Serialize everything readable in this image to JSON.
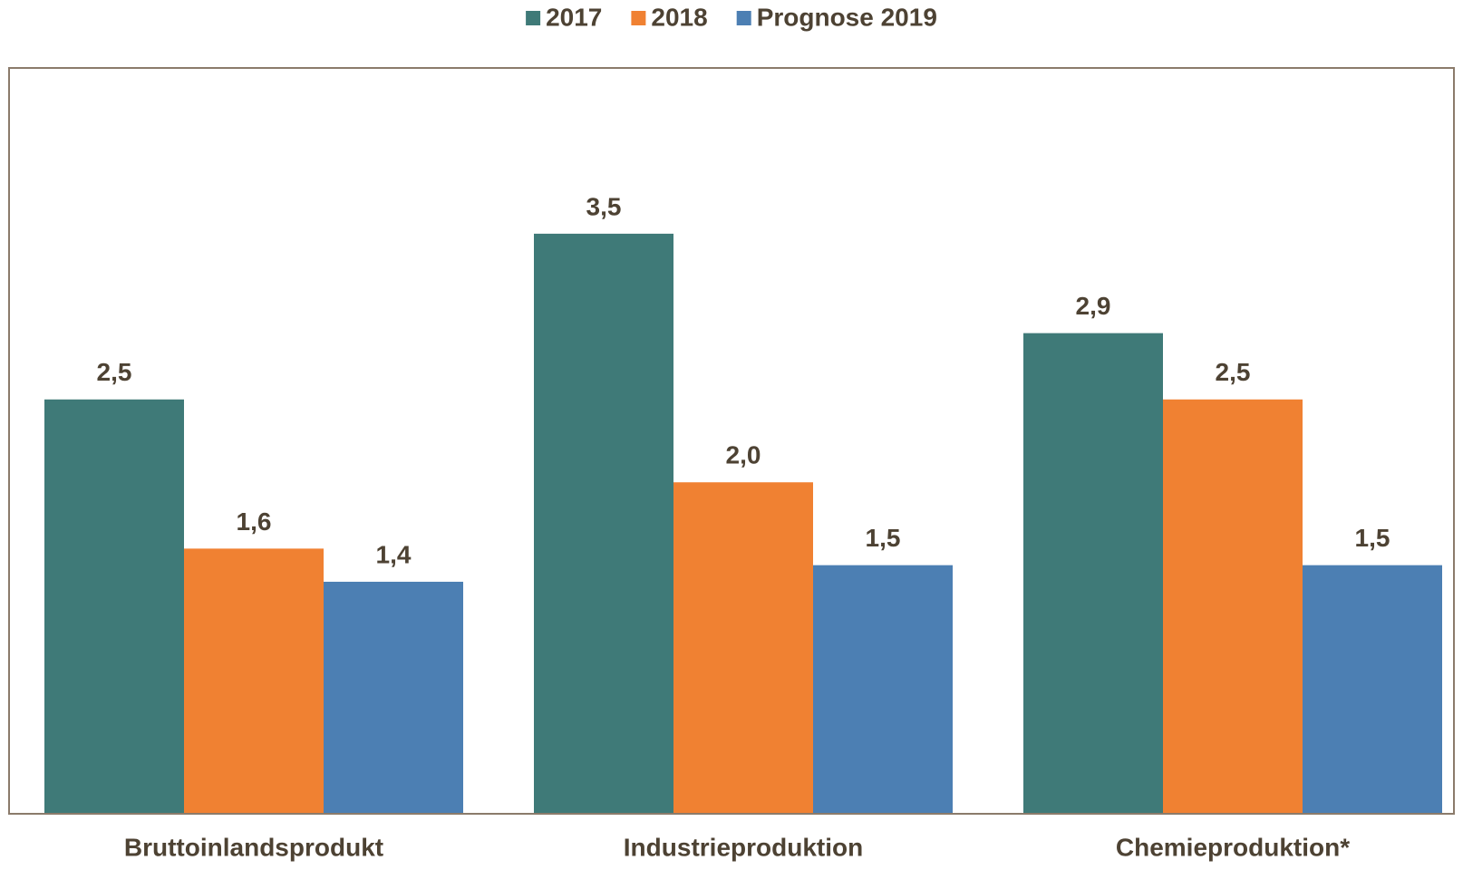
{
  "chart_data": {
    "type": "bar",
    "categories": [
      "Bruttoinlandsprodukt",
      "Industrieproduktion",
      "Chemieproduktion*"
    ],
    "series": [
      {
        "name": "2017",
        "color": "#3f7a78",
        "values": [
          2.5,
          3.5,
          2.9
        ],
        "value_labels": [
          "2,5",
          "3,5",
          "2,9"
        ]
      },
      {
        "name": "2018",
        "color": "#f08132",
        "values": [
          1.6,
          2.0,
          2.5
        ],
        "value_labels": [
          "1,6",
          "2,0",
          "2,5"
        ]
      },
      {
        "name": "Prognose 2019",
        "color": "#4c7fb3",
        "values": [
          1.4,
          1.5,
          1.5
        ],
        "value_labels": [
          "1,4",
          "1,5",
          "1,5"
        ]
      }
    ],
    "ylim": [
      0,
      4.5
    ]
  }
}
